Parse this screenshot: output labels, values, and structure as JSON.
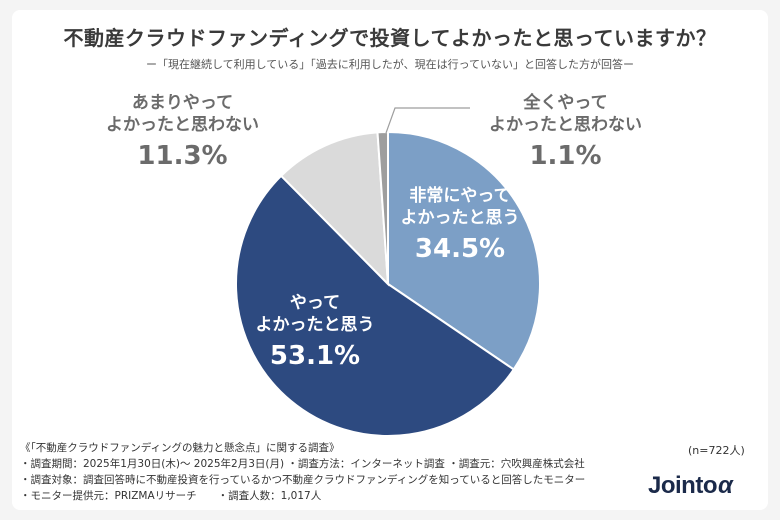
{
  "title": "不動産クラウドファンディングで投資してよかったと思っていますか？",
  "subtitle": "ー「現在継続して利用している」「過去に利用したが、現在は行っていない」と回答した方が回答ー",
  "chart_data": {
    "type": "pie",
    "title": "不動産クラウドファンディングで投資してよかったと思っていますか？",
    "start": "12 o'clock, clockwise",
    "slices": [
      {
        "label": "非常にやって\nよかったと思う",
        "label_lines": [
          "非常にやって",
          "よかったと思う"
        ],
        "value": 34.5,
        "display": "34.5%",
        "color": "#7c9fc6"
      },
      {
        "label": "やって\nよかったと思う",
        "label_lines": [
          "やって",
          "よかったと思う"
        ],
        "value": 53.1,
        "display": "53.1%",
        "color": "#2d4a80"
      },
      {
        "label": "あまりやって\nよかったと思わない",
        "label_lines": [
          "あまりやって",
          "よかったと思わない"
        ],
        "value": 11.3,
        "display": "11.3%",
        "color": "#dadada"
      },
      {
        "label": "全くやって\nよかったと思わない",
        "label_lines": [
          "全くやって",
          "よかったと思わない"
        ],
        "value": 1.1,
        "display": "1.1%",
        "color": "#9e9e9e"
      }
    ]
  },
  "footer": {
    "survey_title": "《「不動産クラウドファンディングの魅力と懸念点」に関する調査》",
    "lines": [
      "・調査期間：2025年1月30日(木)〜 2025年2月3日(月) ・調査方法：インターネット調査 ・調査元：穴吹興産株式会社",
      "・調査対象：調査回答時に不動産投資を行っているかつ不動産クラウドファンディングを知っていると回答したモニター",
      "・モニター提供元：PRIZMAリサーチ　　・調査人数：1,017人"
    ],
    "n": "(n=722人)"
  },
  "logo": {
    "main": "Jointo",
    "suffix": "α"
  }
}
